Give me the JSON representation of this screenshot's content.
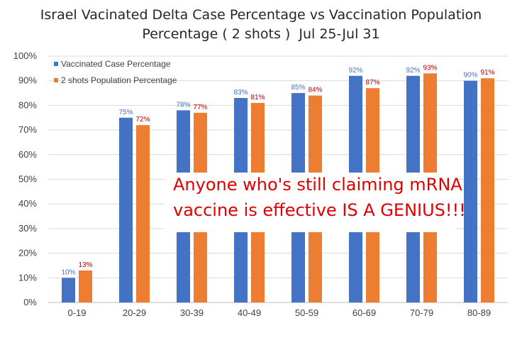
{
  "chart_data": {
    "type": "bar",
    "title_line1": "Israel Vacinated Delta Case Percentage vs Vaccination Population",
    "title_line2": "Percentage ( 2 shots )  Jul 25-Jul 31",
    "categories": [
      "0-19",
      "20-29",
      "30-39",
      "40-49",
      "50-59",
      "60-69",
      "70-79",
      "80-89"
    ],
    "series": [
      {
        "name": "Vaccinated Case Percentage",
        "values": [
          10,
          75,
          78,
          83,
          85,
          92,
          92,
          90
        ],
        "labels": [
          "10%",
          "75%",
          "78%",
          "83%",
          "85%",
          "92%",
          "92%",
          "90%"
        ],
        "color": "#4472c4",
        "label_color": "#4472c4"
      },
      {
        "name": "2 shots Population Percentage",
        "values": [
          13,
          72,
          77,
          81,
          84,
          87,
          93,
          91
        ],
        "labels": [
          "13%",
          "72%",
          "77%",
          "81%",
          "84%",
          "87%",
          "93%",
          "91%"
        ],
        "color": "#ed7d31",
        "label_color": "#c00000"
      }
    ],
    "y_ticks": [
      "0%",
      "10%",
      "20%",
      "30%",
      "40%",
      "50%",
      "60%",
      "70%",
      "80%",
      "90%",
      "100%"
    ],
    "ylim": [
      0,
      100
    ],
    "grid": true,
    "legend": "top-left"
  },
  "annotation": {
    "line1": "Anyone who's still claiming mRNA",
    "line2": "vaccine is effective IS A GENIUS!!!"
  },
  "colors": {
    "gridline": "#d9d9d9",
    "axis": "#bfbfbf",
    "tick_text": "#404040",
    "annotation": "#e00000"
  }
}
